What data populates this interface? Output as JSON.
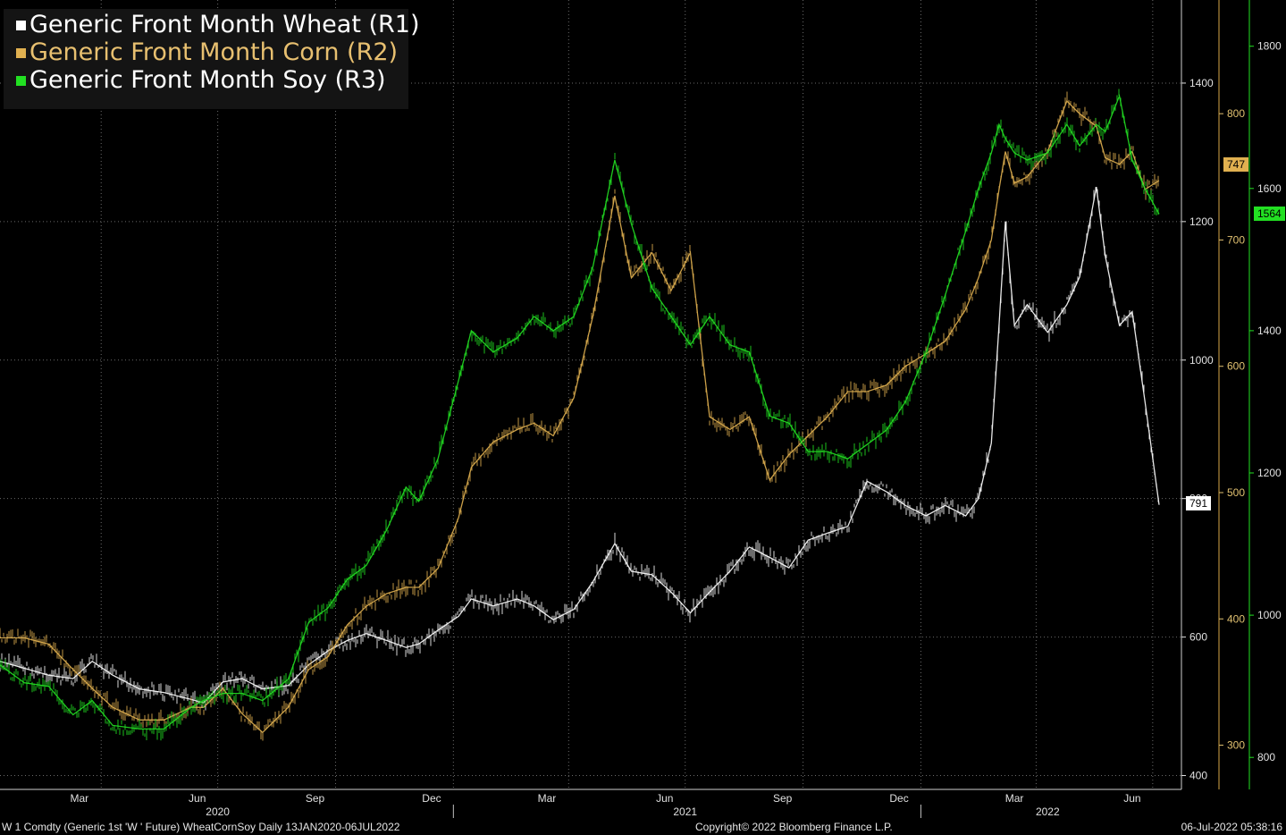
{
  "legend": {
    "items": [
      {
        "label": "Generic Front Month Wheat (R1)",
        "color": "#ffffff"
      },
      {
        "label": "Generic Front Month Corn (R2)",
        "color": "#e0b050"
      },
      {
        "label": "Generic Front Month Soy (R3)",
        "color": "#22e022"
      }
    ]
  },
  "footer": {
    "left": "W 1 Comdty (Generic 1st 'W ' Future) WheatCornSoy  Daily 13JAN2020-06JUL2022",
    "center": "Copyright© 2022 Bloomberg Finance L.P.",
    "right": "06-Jul-2022 05:38:16"
  },
  "last_values": {
    "wheat": "791",
    "corn": "747",
    "soy": "1564"
  },
  "chart_data": {
    "type": "line",
    "x_range": [
      "2020-01-13",
      "2022-07-06"
    ],
    "x_month_ticks": [
      "Mar",
      "Jun",
      "Sep",
      "Dec",
      "Mar",
      "Jun",
      "Sep",
      "Dec",
      "Mar",
      "Jun"
    ],
    "x_year_labels": [
      "2020",
      "2021",
      "2022"
    ],
    "axes": {
      "wheat": {
        "ticks": [
          400,
          600,
          800,
          1000,
          1200,
          1400
        ],
        "ylim": [
          380,
          1520
        ]
      },
      "corn": {
        "ticks": [
          300,
          400,
          500,
          600,
          700,
          800
        ],
        "ylim": [
          265,
          890
        ]
      },
      "soy": {
        "ticks": [
          800,
          1000,
          1200,
          1400,
          1600,
          1800
        ],
        "ylim": [
          755,
          1865
        ]
      }
    },
    "grid": true,
    "legend_position": "top-left",
    "series": [
      {
        "name": "Generic Front Month Wheat (R1)",
        "color": "#ffffff",
        "axis": "wheat",
        "points": [
          [
            "2020-01-13",
            565
          ],
          [
            "2020-02-01",
            555
          ],
          [
            "2020-02-20",
            545
          ],
          [
            "2020-03-10",
            540
          ],
          [
            "2020-03-25",
            565
          ],
          [
            "2020-04-10",
            545
          ],
          [
            "2020-05-01",
            525
          ],
          [
            "2020-05-20",
            520
          ],
          [
            "2020-06-10",
            510
          ],
          [
            "2020-06-20",
            505
          ],
          [
            "2020-07-05",
            535
          ],
          [
            "2020-07-20",
            540
          ],
          [
            "2020-08-05",
            525
          ],
          [
            "2020-08-25",
            530
          ],
          [
            "2020-09-10",
            560
          ],
          [
            "2020-09-25",
            580
          ],
          [
            "2020-10-10",
            595
          ],
          [
            "2020-10-25",
            605
          ],
          [
            "2020-11-10",
            595
          ],
          [
            "2020-11-25",
            585
          ],
          [
            "2020-12-05",
            590
          ],
          [
            "2020-12-20",
            610
          ],
          [
            "2021-01-05",
            630
          ],
          [
            "2021-01-15",
            655
          ],
          [
            "2021-02-01",
            645
          ],
          [
            "2021-02-20",
            655
          ],
          [
            "2021-03-05",
            645
          ],
          [
            "2021-03-20",
            625
          ],
          [
            "2021-04-05",
            640
          ],
          [
            "2021-04-20",
            680
          ],
          [
            "2021-05-07",
            735
          ],
          [
            "2021-05-20",
            695
          ],
          [
            "2021-06-05",
            690
          ],
          [
            "2021-06-20",
            665
          ],
          [
            "2021-07-05",
            635
          ],
          [
            "2021-07-20",
            665
          ],
          [
            "2021-08-05",
            695
          ],
          [
            "2021-08-20",
            730
          ],
          [
            "2021-09-05",
            715
          ],
          [
            "2021-09-20",
            700
          ],
          [
            "2021-10-05",
            740
          ],
          [
            "2021-10-20",
            750
          ],
          [
            "2021-11-05",
            760
          ],
          [
            "2021-11-20",
            825
          ],
          [
            "2021-12-05",
            810
          ],
          [
            "2021-12-20",
            790
          ],
          [
            "2022-01-05",
            775
          ],
          [
            "2022-01-20",
            790
          ],
          [
            "2022-02-05",
            775
          ],
          [
            "2022-02-15",
            800
          ],
          [
            "2022-02-25",
            880
          ],
          [
            "2022-03-03",
            1050
          ],
          [
            "2022-03-08",
            1200
          ],
          [
            "2022-03-15",
            1050
          ],
          [
            "2022-03-25",
            1080
          ],
          [
            "2022-04-10",
            1040
          ],
          [
            "2022-04-25",
            1080
          ],
          [
            "2022-05-05",
            1120
          ],
          [
            "2022-05-18",
            1250
          ],
          [
            "2022-05-25",
            1150
          ],
          [
            "2022-06-05",
            1050
          ],
          [
            "2022-06-15",
            1070
          ],
          [
            "2022-06-25",
            940
          ],
          [
            "2022-07-06",
            791
          ]
        ]
      },
      {
        "name": "Generic Front Month Corn (R2)",
        "color": "#e0b050",
        "axis": "corn",
        "points": [
          [
            "2020-01-13",
            385
          ],
          [
            "2020-02-01",
            385
          ],
          [
            "2020-02-20",
            380
          ],
          [
            "2020-03-10",
            360
          ],
          [
            "2020-03-25",
            345
          ],
          [
            "2020-04-10",
            330
          ],
          [
            "2020-05-01",
            320
          ],
          [
            "2020-05-20",
            320
          ],
          [
            "2020-06-10",
            330
          ],
          [
            "2020-06-20",
            330
          ],
          [
            "2020-07-05",
            345
          ],
          [
            "2020-07-20",
            325
          ],
          [
            "2020-08-05",
            310
          ],
          [
            "2020-08-25",
            330
          ],
          [
            "2020-09-10",
            360
          ],
          [
            "2020-09-25",
            370
          ],
          [
            "2020-10-10",
            395
          ],
          [
            "2020-10-25",
            410
          ],
          [
            "2020-11-10",
            420
          ],
          [
            "2020-11-25",
            425
          ],
          [
            "2020-12-05",
            425
          ],
          [
            "2020-12-20",
            440
          ],
          [
            "2021-01-05",
            480
          ],
          [
            "2021-01-15",
            520
          ],
          [
            "2021-02-01",
            540
          ],
          [
            "2021-02-20",
            550
          ],
          [
            "2021-03-05",
            555
          ],
          [
            "2021-03-20",
            545
          ],
          [
            "2021-04-05",
            575
          ],
          [
            "2021-04-20",
            640
          ],
          [
            "2021-05-07",
            735
          ],
          [
            "2021-05-20",
            670
          ],
          [
            "2021-06-05",
            690
          ],
          [
            "2021-06-20",
            660
          ],
          [
            "2021-07-05",
            690
          ],
          [
            "2021-07-20",
            560
          ],
          [
            "2021-08-05",
            550
          ],
          [
            "2021-08-20",
            560
          ],
          [
            "2021-09-05",
            510
          ],
          [
            "2021-09-20",
            530
          ],
          [
            "2021-10-05",
            545
          ],
          [
            "2021-10-20",
            560
          ],
          [
            "2021-11-05",
            580
          ],
          [
            "2021-11-20",
            580
          ],
          [
            "2021-12-05",
            585
          ],
          [
            "2021-12-20",
            600
          ],
          [
            "2022-01-05",
            610
          ],
          [
            "2022-01-20",
            620
          ],
          [
            "2022-02-05",
            645
          ],
          [
            "2022-02-15",
            670
          ],
          [
            "2022-02-25",
            700
          ],
          [
            "2022-03-03",
            740
          ],
          [
            "2022-03-08",
            770
          ],
          [
            "2022-03-15",
            745
          ],
          [
            "2022-03-25",
            750
          ],
          [
            "2022-04-10",
            770
          ],
          [
            "2022-04-25",
            810
          ],
          [
            "2022-05-05",
            800
          ],
          [
            "2022-05-18",
            790
          ],
          [
            "2022-05-25",
            765
          ],
          [
            "2022-06-05",
            760
          ],
          [
            "2022-06-15",
            770
          ],
          [
            "2022-06-25",
            740
          ],
          [
            "2022-07-06",
            747
          ]
        ]
      },
      {
        "name": "Generic Front Month Soy (R3)",
        "color": "#22e022",
        "axis": "soy",
        "points": [
          [
            "2020-01-13",
            930
          ],
          [
            "2020-02-01",
            905
          ],
          [
            "2020-02-20",
            900
          ],
          [
            "2020-03-10",
            860
          ],
          [
            "2020-03-25",
            880
          ],
          [
            "2020-04-10",
            845
          ],
          [
            "2020-05-01",
            840
          ],
          [
            "2020-05-20",
            840
          ],
          [
            "2020-06-10",
            870
          ],
          [
            "2020-06-20",
            880
          ],
          [
            "2020-07-05",
            890
          ],
          [
            "2020-07-20",
            890
          ],
          [
            "2020-08-05",
            880
          ],
          [
            "2020-08-25",
            910
          ],
          [
            "2020-09-10",
            990
          ],
          [
            "2020-09-25",
            1010
          ],
          [
            "2020-10-10",
            1050
          ],
          [
            "2020-10-25",
            1070
          ],
          [
            "2020-11-10",
            1120
          ],
          [
            "2020-11-25",
            1180
          ],
          [
            "2020-12-05",
            1160
          ],
          [
            "2020-12-20",
            1220
          ],
          [
            "2021-01-05",
            1330
          ],
          [
            "2021-01-15",
            1400
          ],
          [
            "2021-02-01",
            1370
          ],
          [
            "2021-02-20",
            1390
          ],
          [
            "2021-03-05",
            1420
          ],
          [
            "2021-03-20",
            1400
          ],
          [
            "2021-04-05",
            1420
          ],
          [
            "2021-04-20",
            1490
          ],
          [
            "2021-05-07",
            1640
          ],
          [
            "2021-05-20",
            1550
          ],
          [
            "2021-06-05",
            1460
          ],
          [
            "2021-06-20",
            1420
          ],
          [
            "2021-07-05",
            1380
          ],
          [
            "2021-07-20",
            1420
          ],
          [
            "2021-08-05",
            1380
          ],
          [
            "2021-08-20",
            1370
          ],
          [
            "2021-09-05",
            1280
          ],
          [
            "2021-09-20",
            1270
          ],
          [
            "2021-10-05",
            1230
          ],
          [
            "2021-10-20",
            1230
          ],
          [
            "2021-11-05",
            1220
          ],
          [
            "2021-11-20",
            1240
          ],
          [
            "2021-12-05",
            1260
          ],
          [
            "2021-12-20",
            1300
          ],
          [
            "2022-01-05",
            1370
          ],
          [
            "2022-01-20",
            1450
          ],
          [
            "2022-02-05",
            1540
          ],
          [
            "2022-02-15",
            1600
          ],
          [
            "2022-02-25",
            1650
          ],
          [
            "2022-03-03",
            1690
          ],
          [
            "2022-03-08",
            1670
          ],
          [
            "2022-03-15",
            1650
          ],
          [
            "2022-03-25",
            1640
          ],
          [
            "2022-04-10",
            1650
          ],
          [
            "2022-04-25",
            1690
          ],
          [
            "2022-05-05",
            1660
          ],
          [
            "2022-05-18",
            1690
          ],
          [
            "2022-05-25",
            1680
          ],
          [
            "2022-06-05",
            1730
          ],
          [
            "2022-06-15",
            1640
          ],
          [
            "2022-06-25",
            1600
          ],
          [
            "2022-07-06",
            1564
          ]
        ]
      }
    ]
  }
}
